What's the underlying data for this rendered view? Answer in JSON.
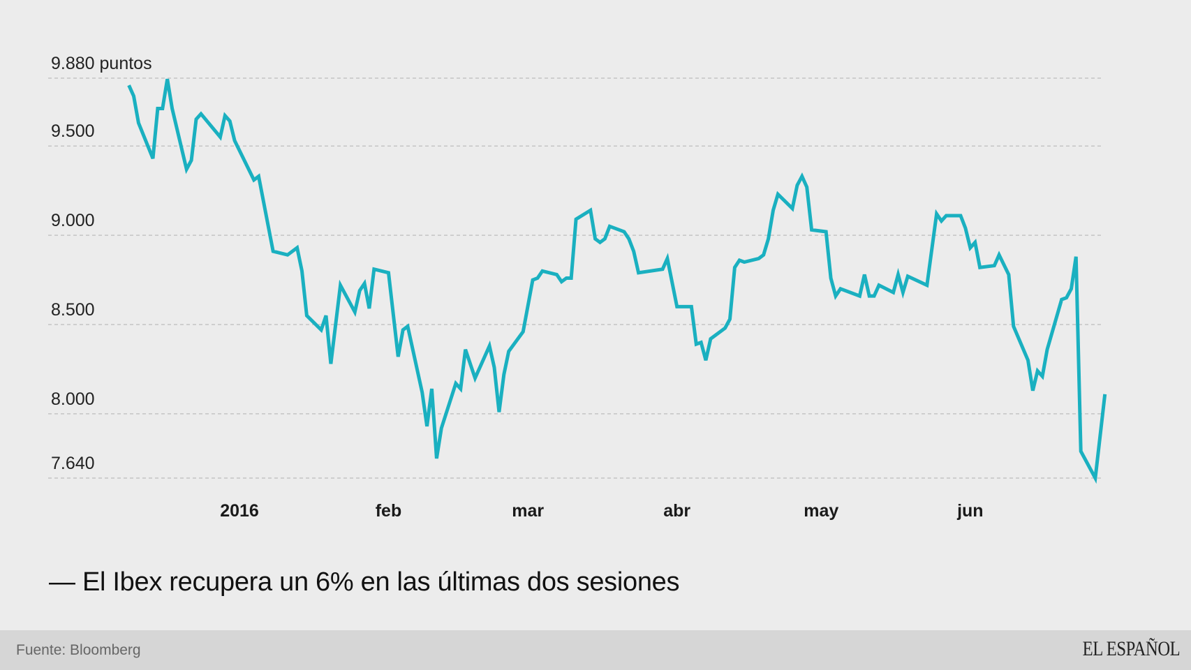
{
  "chart_data": {
    "type": "line",
    "title": "",
    "headline": "— El Ibex recupera un 6% en las últimas dos sesiones",
    "xlabel": "",
    "ylabel": "",
    "y_unit_label": "9.880 puntos",
    "ylim": [
      7640,
      9880
    ],
    "y_ticks": [
      {
        "value": 9880,
        "label": "9.880 puntos"
      },
      {
        "value": 9500,
        "label": "9.500"
      },
      {
        "value": 9000,
        "label": "9.000"
      },
      {
        "value": 8500,
        "label": "8.500"
      },
      {
        "value": 8000,
        "label": "8.000"
      },
      {
        "value": 7640,
        "label": "7.640"
      }
    ],
    "x_ticks": [
      {
        "date": "2016-01-01",
        "label": "2016"
      },
      {
        "date": "2016-02-01",
        "label": "feb"
      },
      {
        "date": "2016-03-01",
        "label": "mar"
      },
      {
        "date": "2016-04-01",
        "label": "abr"
      },
      {
        "date": "2016-05-01",
        "label": "may"
      },
      {
        "date": "2016-06-01",
        "label": "jun"
      }
    ],
    "grid": "horizontal dashed",
    "line_color": "#1ab0c0",
    "series": [
      {
        "points": [
          [
            "2015-12-09",
            9840
          ],
          [
            "2015-12-10",
            9780
          ],
          [
            "2015-12-11",
            9630
          ],
          [
            "2015-12-14",
            9430
          ],
          [
            "2015-12-15",
            9710
          ],
          [
            "2015-12-16",
            9710
          ],
          [
            "2015-12-17",
            9875
          ],
          [
            "2015-12-18",
            9710
          ],
          [
            "2015-12-21",
            9370
          ],
          [
            "2015-12-22",
            9420
          ],
          [
            "2015-12-23",
            9650
          ],
          [
            "2015-12-24",
            9680
          ],
          [
            "2015-12-28",
            9550
          ],
          [
            "2015-12-29",
            9670
          ],
          [
            "2015-12-30",
            9640
          ],
          [
            "2015-12-31",
            9530
          ],
          [
            "2016-01-04",
            9310
          ],
          [
            "2016-01-05",
            9330
          ],
          [
            "2016-01-08",
            8910
          ],
          [
            "2016-01-11",
            8890
          ],
          [
            "2016-01-13",
            8930
          ],
          [
            "2016-01-14",
            8800
          ],
          [
            "2016-01-15",
            8550
          ],
          [
            "2016-01-18",
            8470
          ],
          [
            "2016-01-19",
            8550
          ],
          [
            "2016-01-20",
            8280
          ],
          [
            "2016-01-22",
            8720
          ],
          [
            "2016-01-25",
            8570
          ],
          [
            "2016-01-26",
            8690
          ],
          [
            "2016-01-27",
            8730
          ],
          [
            "2016-01-28",
            8590
          ],
          [
            "2016-01-29",
            8810
          ],
          [
            "2016-02-01",
            8790
          ],
          [
            "2016-02-03",
            8320
          ],
          [
            "2016-02-04",
            8470
          ],
          [
            "2016-02-05",
            8490
          ],
          [
            "2016-02-08",
            8120
          ],
          [
            "2016-02-09",
            7930
          ],
          [
            "2016-02-10",
            8140
          ],
          [
            "2016-02-11",
            7750
          ],
          [
            "2016-02-12",
            7920
          ],
          [
            "2016-02-15",
            8170
          ],
          [
            "2016-02-16",
            8140
          ],
          [
            "2016-02-17",
            8360
          ],
          [
            "2016-02-19",
            8200
          ],
          [
            "2016-02-22",
            8380
          ],
          [
            "2016-02-23",
            8260
          ],
          [
            "2016-02-24",
            8010
          ],
          [
            "2016-02-25",
            8220
          ],
          [
            "2016-02-26",
            8350
          ],
          [
            "2016-02-29",
            8460
          ],
          [
            "2016-03-02",
            8750
          ],
          [
            "2016-03-03",
            8760
          ],
          [
            "2016-03-04",
            8800
          ],
          [
            "2016-03-07",
            8780
          ],
          [
            "2016-03-08",
            8740
          ],
          [
            "2016-03-09",
            8760
          ],
          [
            "2016-03-10",
            8760
          ],
          [
            "2016-03-11",
            9090
          ],
          [
            "2016-03-14",
            9140
          ],
          [
            "2016-03-15",
            8980
          ],
          [
            "2016-03-16",
            8960
          ],
          [
            "2016-03-17",
            8980
          ],
          [
            "2016-03-18",
            9050
          ],
          [
            "2016-03-21",
            9020
          ],
          [
            "2016-03-22",
            8980
          ],
          [
            "2016-03-23",
            8910
          ],
          [
            "2016-03-24",
            8790
          ],
          [
            "2016-03-29",
            8810
          ],
          [
            "2016-03-30",
            8870
          ],
          [
            "2016-04-01",
            8600
          ],
          [
            "2016-04-04",
            8600
          ],
          [
            "2016-04-05",
            8390
          ],
          [
            "2016-04-06",
            8400
          ],
          [
            "2016-04-07",
            8300
          ],
          [
            "2016-04-08",
            8420
          ],
          [
            "2016-04-11",
            8480
          ],
          [
            "2016-04-12",
            8530
          ],
          [
            "2016-04-13",
            8820
          ],
          [
            "2016-04-14",
            8860
          ],
          [
            "2016-04-15",
            8850
          ],
          [
            "2016-04-18",
            8870
          ],
          [
            "2016-04-19",
            8890
          ],
          [
            "2016-04-20",
            8980
          ],
          [
            "2016-04-21",
            9140
          ],
          [
            "2016-04-22",
            9230
          ],
          [
            "2016-04-25",
            9150
          ],
          [
            "2016-04-26",
            9280
          ],
          [
            "2016-04-27",
            9330
          ],
          [
            "2016-04-28",
            9270
          ],
          [
            "2016-04-29",
            9030
          ],
          [
            "2016-05-02",
            9020
          ],
          [
            "2016-05-03",
            8760
          ],
          [
            "2016-05-04",
            8660
          ],
          [
            "2016-05-05",
            8700
          ],
          [
            "2016-05-09",
            8660
          ],
          [
            "2016-05-10",
            8780
          ],
          [
            "2016-05-11",
            8660
          ],
          [
            "2016-05-12",
            8660
          ],
          [
            "2016-05-13",
            8720
          ],
          [
            "2016-05-16",
            8680
          ],
          [
            "2016-05-17",
            8780
          ],
          [
            "2016-05-18",
            8680
          ],
          [
            "2016-05-19",
            8770
          ],
          [
            "2016-05-23",
            8720
          ],
          [
            "2016-05-25",
            9120
          ],
          [
            "2016-05-26",
            9080
          ],
          [
            "2016-05-27",
            9110
          ],
          [
            "2016-05-30",
            9110
          ],
          [
            "2016-05-31",
            9040
          ],
          [
            "2016-06-01",
            8930
          ],
          [
            "2016-06-02",
            8960
          ],
          [
            "2016-06-03",
            8820
          ],
          [
            "2016-06-06",
            8830
          ],
          [
            "2016-06-07",
            8890
          ],
          [
            "2016-06-09",
            8780
          ],
          [
            "2016-06-10",
            8490
          ],
          [
            "2016-06-13",
            8300
          ],
          [
            "2016-06-14",
            8130
          ],
          [
            "2016-06-15",
            8240
          ],
          [
            "2016-06-16",
            8210
          ],
          [
            "2016-06-17",
            8360
          ],
          [
            "2016-06-20",
            8640
          ],
          [
            "2016-06-21",
            8650
          ],
          [
            "2016-06-22",
            8700
          ],
          [
            "2016-06-23",
            8880
          ],
          [
            "2016-06-24",
            7790
          ],
          [
            "2016-06-27",
            7640
          ],
          [
            "2016-06-29",
            8110
          ]
        ]
      }
    ]
  },
  "footer": {
    "source": "Fuente: Bloomberg",
    "logo_text": "EL ESPAÑOL"
  }
}
